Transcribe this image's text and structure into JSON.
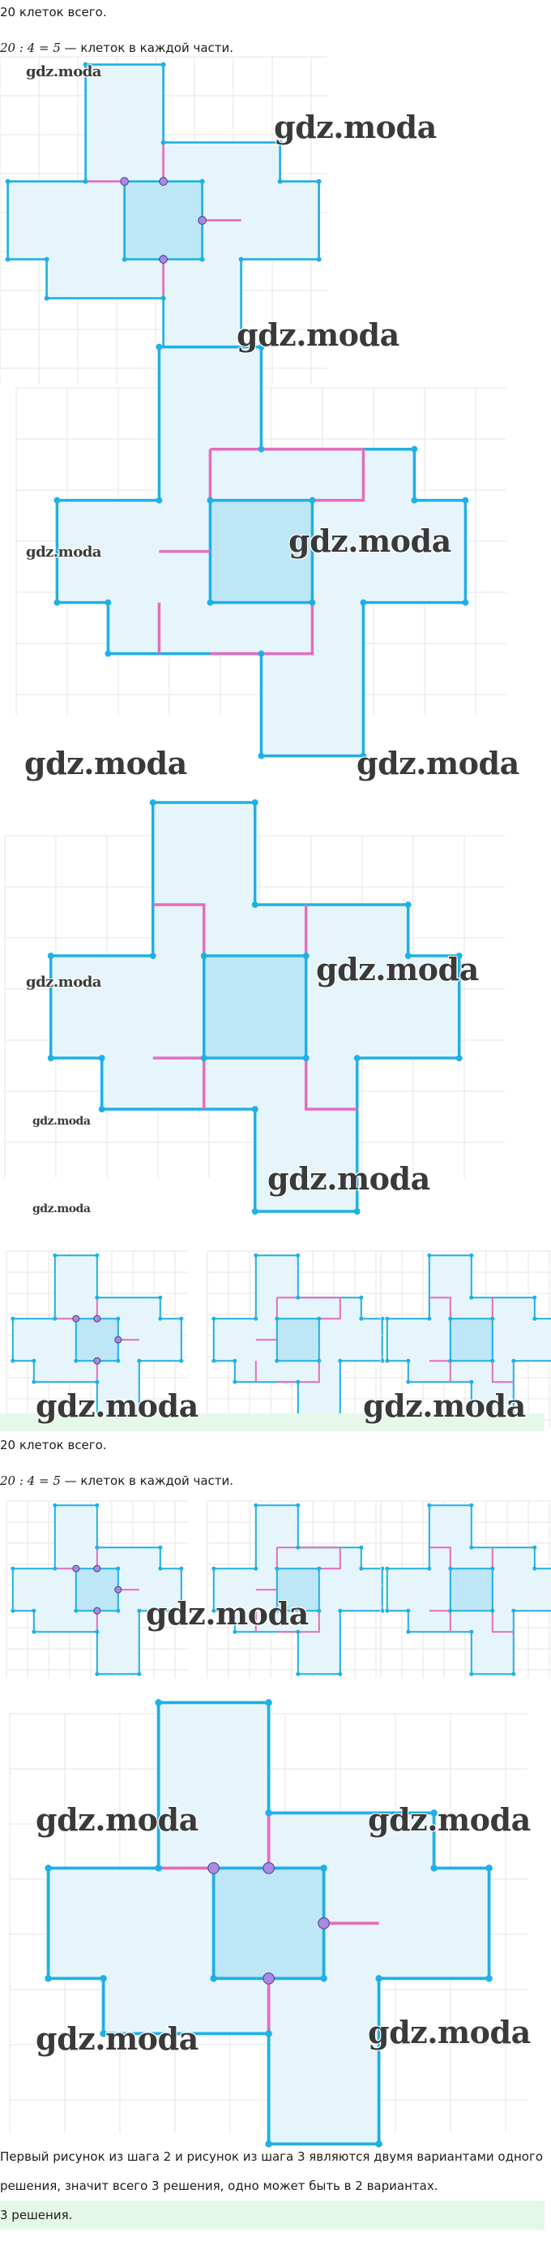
{
  "solution": {
    "line_total": "20 клеток всего.",
    "eq_left": "20 : 4 = 5",
    "eq_right": " — клеток в каждой части.",
    "line_total_2": "20 клеток всего.",
    "eq_left_2": "20 : 4 = 5",
    "eq_right_2": " — клеток в каждой части.",
    "conclusion": "Первый рисунок из шага 2 и рисунок из шага 3 являются двумя вариантами одного решения, значит всего 3 решения, одно может быть в 2 вариантах.",
    "answer": "3 решения."
  },
  "watermark": "gdz.moda",
  "colors": {
    "outline": "#1fb0e4",
    "fill": "#e6f5fc",
    "center_fill": "#bde6f6",
    "cut": "#e56cbd",
    "grid": "#e5e5e5",
    "answer_bg": "#e3f8e8"
  }
}
